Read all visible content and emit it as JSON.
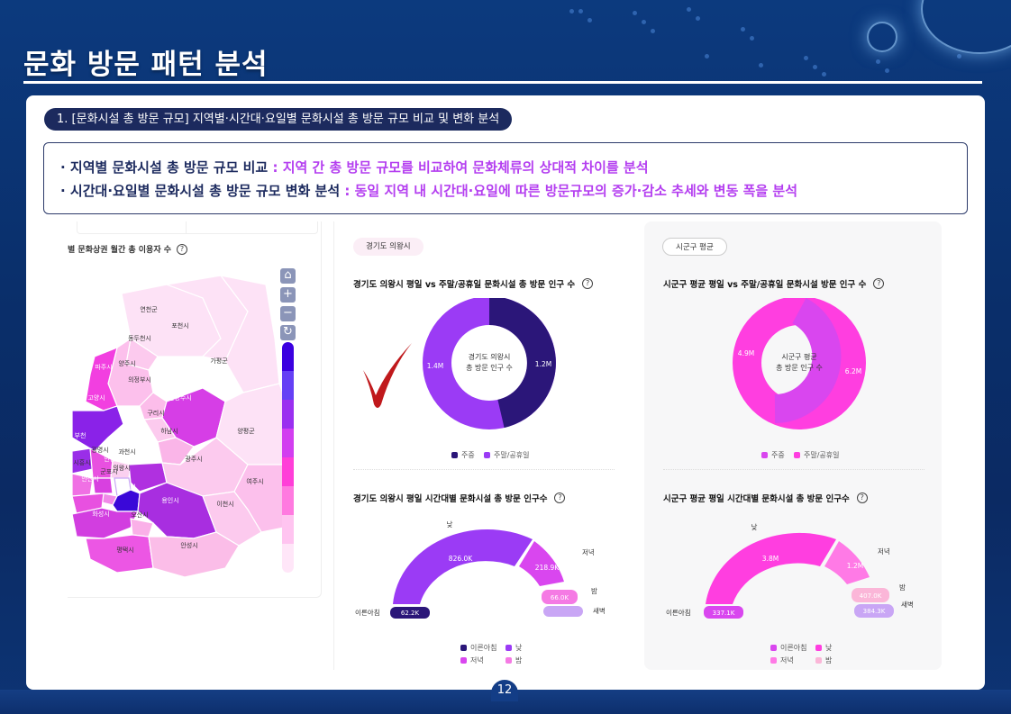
{
  "page": {
    "title": "문화 방문 패턴 분석",
    "page_number": "12"
  },
  "section": {
    "pill": "1. [문화시설 총 방문 규모] 지역별·시간대·요일별 문화시설 총 방문 규모 비교 및 변화 분석"
  },
  "summary": [
    {
      "key": "· 지역별 문화시설 총 방문 규모 비교 ",
      "value": ": 지역 간 총 방문 규모를 비교하여 문화체류의 상대적 차이를 분석"
    },
    {
      "key": "· 시간대·요일별 문화시설 총 방문 규모 변화 분석 ",
      "value": ": 동일 지역 내 시간대·요일에 따른 방문규모의 증가·감소 추세와 변동 폭을 분석"
    }
  ],
  "map": {
    "title": "별 문화상권 월간 총 이용자 수",
    "help": "?",
    "controls": {
      "home": "⌂",
      "zoom_in": "+",
      "zoom_out": "−",
      "reset": "↻"
    },
    "legend_colors": [
      "#3b00e0",
      "#6540f5",
      "#9a30f0",
      "#d23ef0",
      "#ff3ed8",
      "#ff7ae0",
      "#ffc4f0",
      "#ffe6f8"
    ],
    "regions": [
      {
        "name": "연천군",
        "color": "#fde2f6"
      },
      {
        "name": "포천시",
        "color": "#fde2f6"
      },
      {
        "name": "동두천시",
        "color": "#fccaee"
      },
      {
        "name": "가평군",
        "color": "#fde2f6"
      },
      {
        "name": "파주시",
        "color": "#f23fe0"
      },
      {
        "name": "양주시",
        "color": "#fcc0ec"
      },
      {
        "name": "의정부시",
        "color": "#fcbdea"
      },
      {
        "name": "고양시",
        "color": "#8a22e8"
      },
      {
        "name": "남양주시",
        "color": "#d63ee6"
      },
      {
        "name": "구리시",
        "color": "#fccaee"
      },
      {
        "name": "하남시",
        "color": "#fab5e8"
      },
      {
        "name": "양평군",
        "color": "#fde2f6"
      },
      {
        "name": "부천",
        "color": "#9a2ee8"
      },
      {
        "name": "광명시",
        "color": "#e850e0"
      },
      {
        "name": "과천시",
        "color": "#fbd0f0"
      },
      {
        "name": "시흥시",
        "color": "#f070e4"
      },
      {
        "name": "안양시",
        "color": "#d840e0"
      },
      {
        "name": "성남시",
        "color": "#b030e0"
      },
      {
        "name": "광주시",
        "color": "#fccaee"
      },
      {
        "name": "의왕시",
        "color": "#ffffff"
      },
      {
        "name": "군포시",
        "color": "#f08ae8"
      },
      {
        "name": "안산시",
        "color": "#e850e0"
      },
      {
        "name": "수원시",
        "color": "#3a08d8"
      },
      {
        "name": "여주시",
        "color": "#fcc0ec"
      },
      {
        "name": "용인시",
        "color": "#a82ee0"
      },
      {
        "name": "이천시",
        "color": "#fccaee"
      },
      {
        "name": "화성시",
        "color": "#d23ee0"
      },
      {
        "name": "오산시",
        "color": "#fab0e8"
      },
      {
        "name": "평택시",
        "color": "#ec56e4"
      },
      {
        "name": "안성시",
        "color": "#fbbde8"
      }
    ]
  },
  "left_panel": {
    "chip": "경기도 의왕시",
    "donut_title": "경기도 의왕시 평일 vs 주말/공휴일 문화시설 총 방문 인구 수",
    "donut_center_1": "경기도 의왕시",
    "donut_center_2": "총 방문 인구 수",
    "donut_values": {
      "weekday": "1.2M",
      "weekend": "1.4M"
    },
    "donut_legend": [
      "주중",
      "주말/공휴일"
    ],
    "donut_colors": [
      "#2b1679",
      "#9b3bf5"
    ],
    "arc_title": "경기도 의왕시 평일 시간대별 문화시설 총 방문 인구수",
    "arc_labels": {
      "early": "이른아침",
      "day": "낮",
      "evening": "저녁",
      "night": "밤",
      "dawn": "새벽"
    },
    "arc_values": {
      "early": "62.2K",
      "day": "826.0K",
      "evening": "218.9K",
      "night": "66.0K",
      "dawn": ""
    },
    "arc_legend": [
      "이른아침",
      "낮",
      "저녁",
      "밤"
    ],
    "arc_colors": [
      "#2b1679",
      "#9b3bf5",
      "#d946ef",
      "#f57ae4",
      "#c9a6f5"
    ]
  },
  "right_panel": {
    "chip": "시군구 평균",
    "donut_title": "시군구 평균 평일 vs 주말/공휴일 문화시설 방문 인구 수",
    "donut_center_1": "시군구 평균",
    "donut_center_2": "총 방문 인구 수",
    "donut_values": {
      "weekday": "6.2M",
      "weekend": "4.9M"
    },
    "donut_legend": [
      "주중",
      "주말/공휴일"
    ],
    "donut_colors": [
      "#d946ef",
      "#ff3ee0"
    ],
    "arc_title": "시군구 평균 평일 시간대별 문화시설 총 방문 인구수",
    "arc_labels": {
      "early": "이른아침",
      "day": "낮",
      "evening": "저녁",
      "night": "밤",
      "dawn": "새벽"
    },
    "arc_values": {
      "early": "337.1K",
      "day": "3.8M",
      "evening": "1.2M",
      "night": "407.0K",
      "dawn": "384.3K"
    },
    "arc_legend": [
      "이른아침",
      "낮",
      "저녁",
      "밤"
    ],
    "arc_colors": [
      "#d946ef",
      "#ff3ee0",
      "#ff7ae6",
      "#fbb6d8",
      "#c9a6f5"
    ]
  },
  "annotation": {
    "checkmark_color": "#c0191c"
  }
}
